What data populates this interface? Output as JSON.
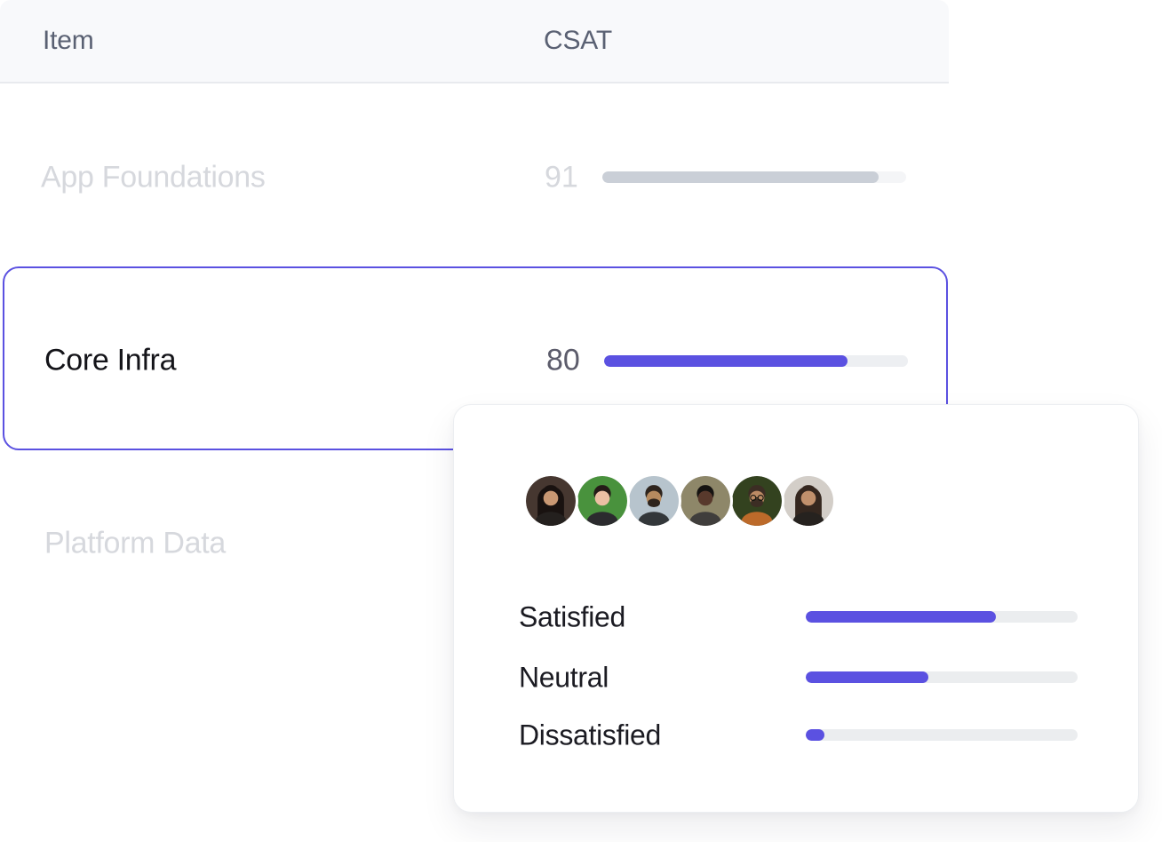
{
  "colors": {
    "accent": "#5b51e1",
    "muted_text": "#d6d8dd",
    "header_text": "#5a6173",
    "selected_text": "#141419",
    "value_text": "#5c5c6b",
    "gray_track": "#f4f5f7",
    "gray_fill": "#cacfd7",
    "card_track": "#edeff2",
    "popover_track": "#ebedef"
  },
  "table": {
    "columns": [
      {
        "label": "Item"
      },
      {
        "label": "CSAT"
      }
    ],
    "rows": [
      {
        "item": "App Foundations",
        "csat": "91",
        "fill_pct": 91,
        "state": "muted"
      },
      {
        "item": "Core Infra",
        "csat": "80",
        "fill_pct": 80,
        "state": "selected"
      },
      {
        "item": "Platform Data",
        "csat": "",
        "state": "muted"
      }
    ]
  },
  "popover": {
    "avatars": [
      {
        "name": "avatar-woman-long-dark-hair",
        "bg": "#463730",
        "hair": "#191210",
        "skin": "#c99873",
        "shirt": "#24201e",
        "hair_style": "long"
      },
      {
        "name": "avatar-woman-short-hair-green",
        "bg": "#49923d",
        "hair": "#251b18",
        "skin": "#ecbfa4",
        "shirt": "#2b2b2e",
        "hair_style": "short"
      },
      {
        "name": "avatar-man-beard-blue",
        "bg": "#b7c4cd",
        "hair": "#2e241d",
        "skin": "#b68a5f",
        "shirt": "#33373a",
        "hair_style": "short",
        "beard": true
      },
      {
        "name": "avatar-man-khaki",
        "bg": "#8e8769",
        "hair": "#151311",
        "skin": "#58392c",
        "shirt": "#403e3c",
        "hair_style": "short"
      },
      {
        "name": "avatar-man-glasses-orange",
        "bg": "#33421f",
        "hair": "#3c2d24",
        "skin": "#bb8a64",
        "shirt": "#bc6a2a",
        "hair_style": "short",
        "beard": true,
        "glasses": true
      },
      {
        "name": "avatar-woman-long-hair-light",
        "bg": "#d3cec8",
        "hair": "#35271f",
        "skin": "#c1906c",
        "shirt": "#26221f",
        "hair_style": "long"
      }
    ],
    "metrics": [
      {
        "label": "Satisfied",
        "fill_pct": 70
      },
      {
        "label": "Neutral",
        "fill_pct": 45
      },
      {
        "label": "Dissatisfied",
        "fill_pct": 7
      }
    ]
  }
}
